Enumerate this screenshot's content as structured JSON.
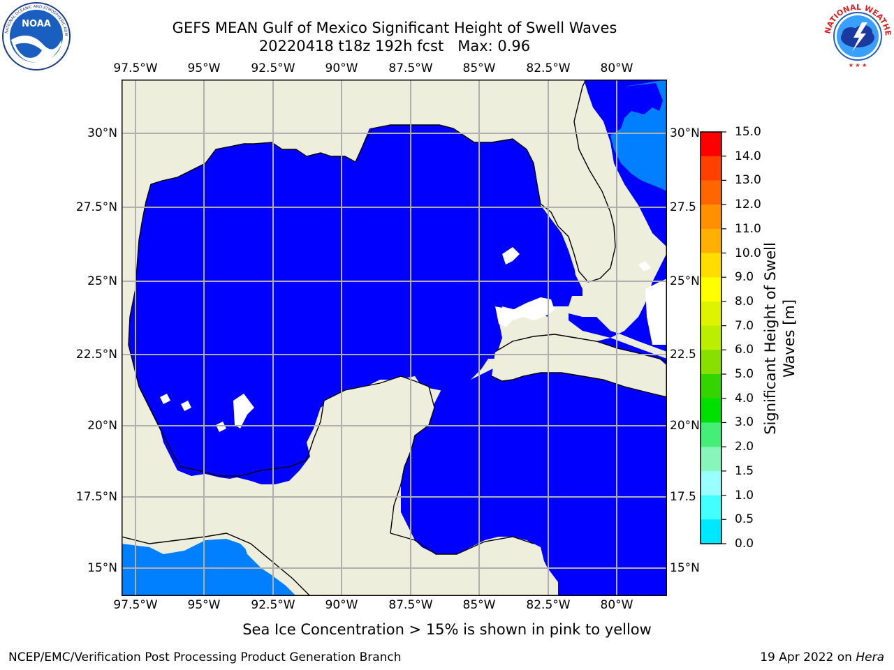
{
  "title": {
    "line1": "GEFS MEAN Gulf of Mexico Significant Height of Swell Waves",
    "line2": "20220418 t18z 192h fcst   Max: 0.96"
  },
  "map": {
    "lon_ticks": [
      "97.5°W",
      "95°W",
      "92.5°W",
      "90°W",
      "87.5°W",
      "85°W",
      "82.5°W",
      "80°W"
    ],
    "lat_ticks": [
      "30°N",
      "27.5°N",
      "25°N",
      "22.5°N",
      "20°N",
      "17.5°N",
      "15°N"
    ],
    "lat_ticks_right": [
      "30°N",
      "27.5",
      "25°N",
      "22.5",
      "20°N",
      "17.5",
      "15°N"
    ],
    "colors": {
      "land": "#eeeedd",
      "ocean_low": "#0000ff",
      "ocean_mid": "#0080ff",
      "grid": "#b0b0b0",
      "coast": "#000000"
    }
  },
  "colorbar": {
    "label_line1": "Significant Height of Swell",
    "label_line2": "Waves [m]",
    "ticks": [
      "15.0",
      "14.0",
      "13.0",
      "12.0",
      "11.0",
      "10.0",
      "9.0",
      "8.0",
      "7.0",
      "6.0",
      "5.0",
      "4.0",
      "3.0",
      "2.0",
      "1.5",
      "1.0",
      "0.5",
      "0.0"
    ],
    "bands": [
      "#ff0000",
      "#ff2a00",
      "#ff5500",
      "#ff7f00",
      "#ffaa00",
      "#ffd400",
      "#ffff00",
      "#e5f500",
      "#ccec00",
      "#99d900",
      "#55cc00",
      "#00dd00",
      "#00ee44",
      "#44f277",
      "#99f7ee",
      "#55ffff",
      "#00f0ff",
      "#00ccff",
      "#0077ff",
      "#0000ff"
    ],
    "band_colors_by_tick": [
      "#ff0000",
      "#ff4000",
      "#ff6600",
      "#ff9000",
      "#ffb000",
      "#ffdd00",
      "#ffff00",
      "#ddf300",
      "#bbee00",
      "#88e000",
      "#33d400",
      "#00e000",
      "#44ee77",
      "#88f5bb",
      "#99ffff",
      "#44ffff",
      "#00e8ff",
      "#0080ff",
      "#0000ff"
    ]
  },
  "caption": "Sea Ice Concentration > 15% is shown in pink to yellow",
  "footer": {
    "left": "NCEP/EMC/Verification Post Processing Product Generation Branch",
    "right_date": "19 Apr 2022 on ",
    "right_host": "Hera"
  },
  "logos": {
    "left": "noaa-logo",
    "right": "national-weather-service-logo",
    "right_text": "NATIONAL WEATHER SERVICE"
  }
}
